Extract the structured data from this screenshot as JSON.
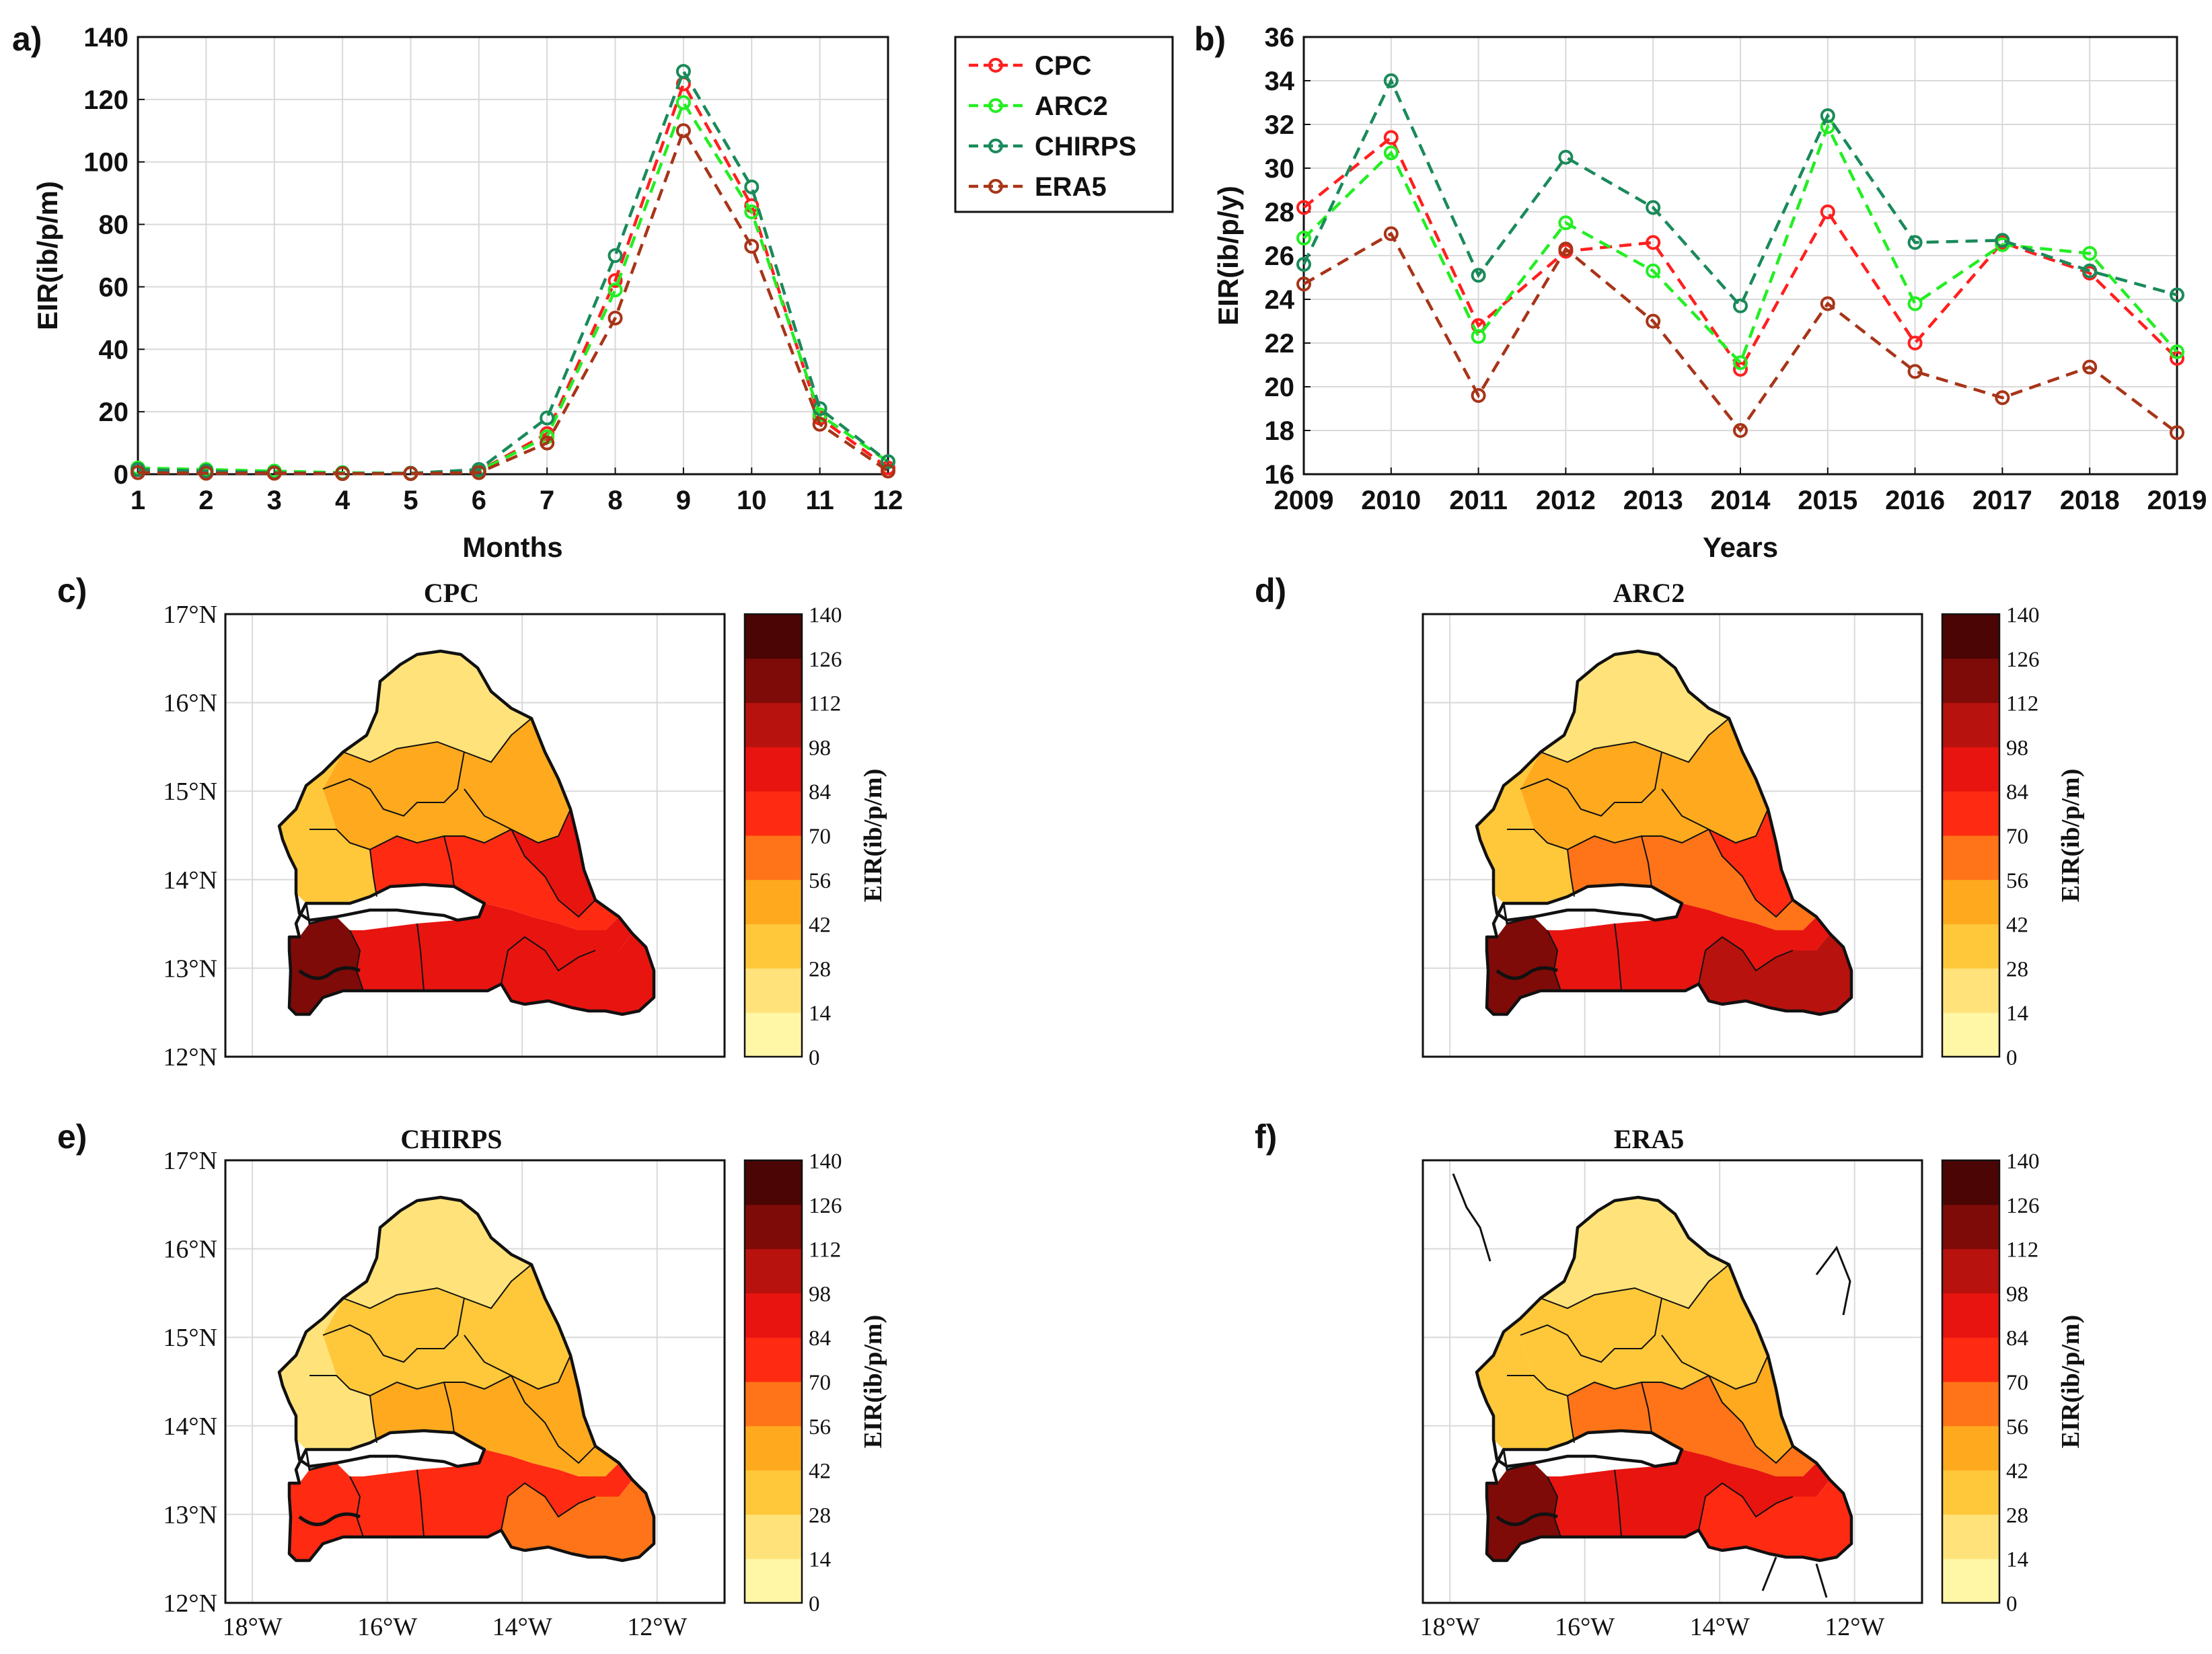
{
  "panel_labels": [
    "a)",
    "b)",
    "c)",
    "d)",
    "e)",
    "f)"
  ],
  "colors": {
    "CPC": "#ff1f1f",
    "ARC2": "#22ee22",
    "CHIRPS": "#1a8a5a",
    "ERA5": "#a83418"
  },
  "legend": [
    "CPC",
    "ARC2",
    "CHIRPS",
    "ERA5"
  ],
  "chart_data": [
    {
      "id": "a",
      "type": "line",
      "title": "",
      "xlabel": "Months",
      "ylabel": "EIR(ib/p/m)",
      "x": [
        1,
        2,
        3,
        4,
        5,
        6,
        7,
        8,
        9,
        10,
        11,
        12
      ],
      "xlim": [
        1,
        12
      ],
      "ylim": [
        0,
        140
      ],
      "xticks": [
        "1",
        "2",
        "3",
        "4",
        "5",
        "6",
        "7",
        "8",
        "9",
        "10",
        "11",
        "12"
      ],
      "yticks": [
        "0",
        "20",
        "40",
        "60",
        "80",
        "100",
        "120",
        "140"
      ],
      "grid": true,
      "series": [
        {
          "name": "CPC",
          "values": [
            1.5,
            1.0,
            0.5,
            0.3,
            0.3,
            1.0,
            13,
            62,
            125,
            86,
            18,
            2
          ]
        },
        {
          "name": "ARC2",
          "values": [
            2.0,
            1.5,
            1.0,
            0.5,
            0.3,
            1.0,
            12,
            59,
            119,
            84,
            19,
            4
          ]
        },
        {
          "name": "CHIRPS",
          "values": [
            1.5,
            1.0,
            0.5,
            0.3,
            0.3,
            1.5,
            18,
            70,
            129,
            92,
            21,
            4
          ]
        },
        {
          "name": "ERA5",
          "values": [
            0.5,
            0.3,
            0.3,
            0.2,
            0.2,
            0.5,
            10,
            50,
            110,
            73,
            16,
            1
          ]
        }
      ]
    },
    {
      "id": "b",
      "type": "line",
      "title": "",
      "xlabel": "Years",
      "ylabel": "EIR(ib/p/y)",
      "x": [
        2009,
        2010,
        2011,
        2012,
        2013,
        2014,
        2015,
        2016,
        2017,
        2018,
        2019
      ],
      "xlim": [
        2009,
        2019
      ],
      "ylim": [
        16,
        36
      ],
      "xticks": [
        "2009",
        "2010",
        "2011",
        "2012",
        "2013",
        "2014",
        "2015",
        "2016",
        "2017",
        "2018",
        "2019"
      ],
      "yticks": [
        "16",
        "18",
        "20",
        "22",
        "24",
        "26",
        "28",
        "30",
        "32",
        "34",
        "36"
      ],
      "grid": true,
      "series": [
        {
          "name": "CPC",
          "values": [
            28.2,
            31.4,
            22.8,
            26.2,
            26.6,
            20.8,
            28.0,
            22.0,
            26.6,
            25.2,
            21.3
          ]
        },
        {
          "name": "ARC2",
          "values": [
            26.8,
            30.7,
            22.3,
            27.5,
            25.3,
            21.1,
            31.9,
            23.8,
            26.5,
            26.1,
            21.6
          ]
        },
        {
          "name": "CHIRPS",
          "values": [
            25.6,
            34.0,
            25.1,
            30.5,
            28.2,
            23.7,
            32.4,
            26.6,
            26.7,
            25.3,
            24.2
          ]
        },
        {
          "name": "ERA5",
          "values": [
            24.7,
            27.0,
            19.6,
            26.3,
            23.0,
            18.0,
            23.8,
            20.7,
            19.5,
            20.9,
            17.9
          ]
        }
      ]
    },
    {
      "id": "c",
      "type": "heatmap",
      "title": "CPC",
      "lat_ticks": [
        "17°N",
        "16°N",
        "15°N",
        "14°N",
        "13°N",
        "12°N"
      ],
      "lon_ticks": [],
      "colorbar_label": "EIR(ib/p/m)",
      "colorbar_ticks": [
        "140",
        "126",
        "112",
        "98",
        "84",
        "70",
        "56",
        "42",
        "28",
        "14",
        "0"
      ],
      "zone_eir": {
        "north": 25,
        "west_coast": 35,
        "central_north": 45,
        "central": 72,
        "east": 85,
        "south_east": 95,
        "south": 92,
        "south_west": 118
      }
    },
    {
      "id": "d",
      "type": "heatmap",
      "title": "ARC2",
      "lat_ticks": [],
      "lon_ticks": [],
      "colorbar_label": "EIR(ib/p/m)",
      "colorbar_ticks": [
        "140",
        "126",
        "112",
        "98",
        "84",
        "70",
        "56",
        "42",
        "28",
        "14",
        "0"
      ],
      "zone_eir": {
        "north": 25,
        "west_coast": 30,
        "central_north": 50,
        "central": 68,
        "east": 80,
        "south_east": 102,
        "south": 92,
        "south_west": 122
      }
    },
    {
      "id": "e",
      "type": "heatmap",
      "title": "CHIRPS",
      "lat_ticks": [
        "17°N",
        "16°N",
        "15°N",
        "14°N",
        "13°N",
        "12°N"
      ],
      "lon_ticks": [
        "18°W",
        "16°W",
        "14°W",
        "12°W"
      ],
      "colorbar_label": "EIR(ib/p/m)",
      "colorbar_ticks": [
        "140",
        "126",
        "112",
        "98",
        "84",
        "70",
        "56",
        "42",
        "28",
        "14",
        "0"
      ],
      "zone_eir": {
        "north": 18,
        "west_coast": 22,
        "central_north": 36,
        "central": 48,
        "east": 55,
        "south_east": 62,
        "south": 70,
        "south_west": 80
      }
    },
    {
      "id": "f",
      "type": "heatmap",
      "title": "ERA5",
      "lat_ticks": [],
      "lon_ticks": [
        "18°W",
        "16°W",
        "14°W",
        "12°W"
      ],
      "colorbar_label": "EIR(ib/p/m)",
      "colorbar_ticks": [
        "140",
        "126",
        "112",
        "98",
        "84",
        "70",
        "56",
        "42",
        "28",
        "14",
        "0"
      ],
      "zone_eir": {
        "north": 20,
        "west_coast": 28,
        "central_north": 38,
        "central": 58,
        "east": 50,
        "south_east": 78,
        "south": 86,
        "south_west": 122
      }
    }
  ]
}
